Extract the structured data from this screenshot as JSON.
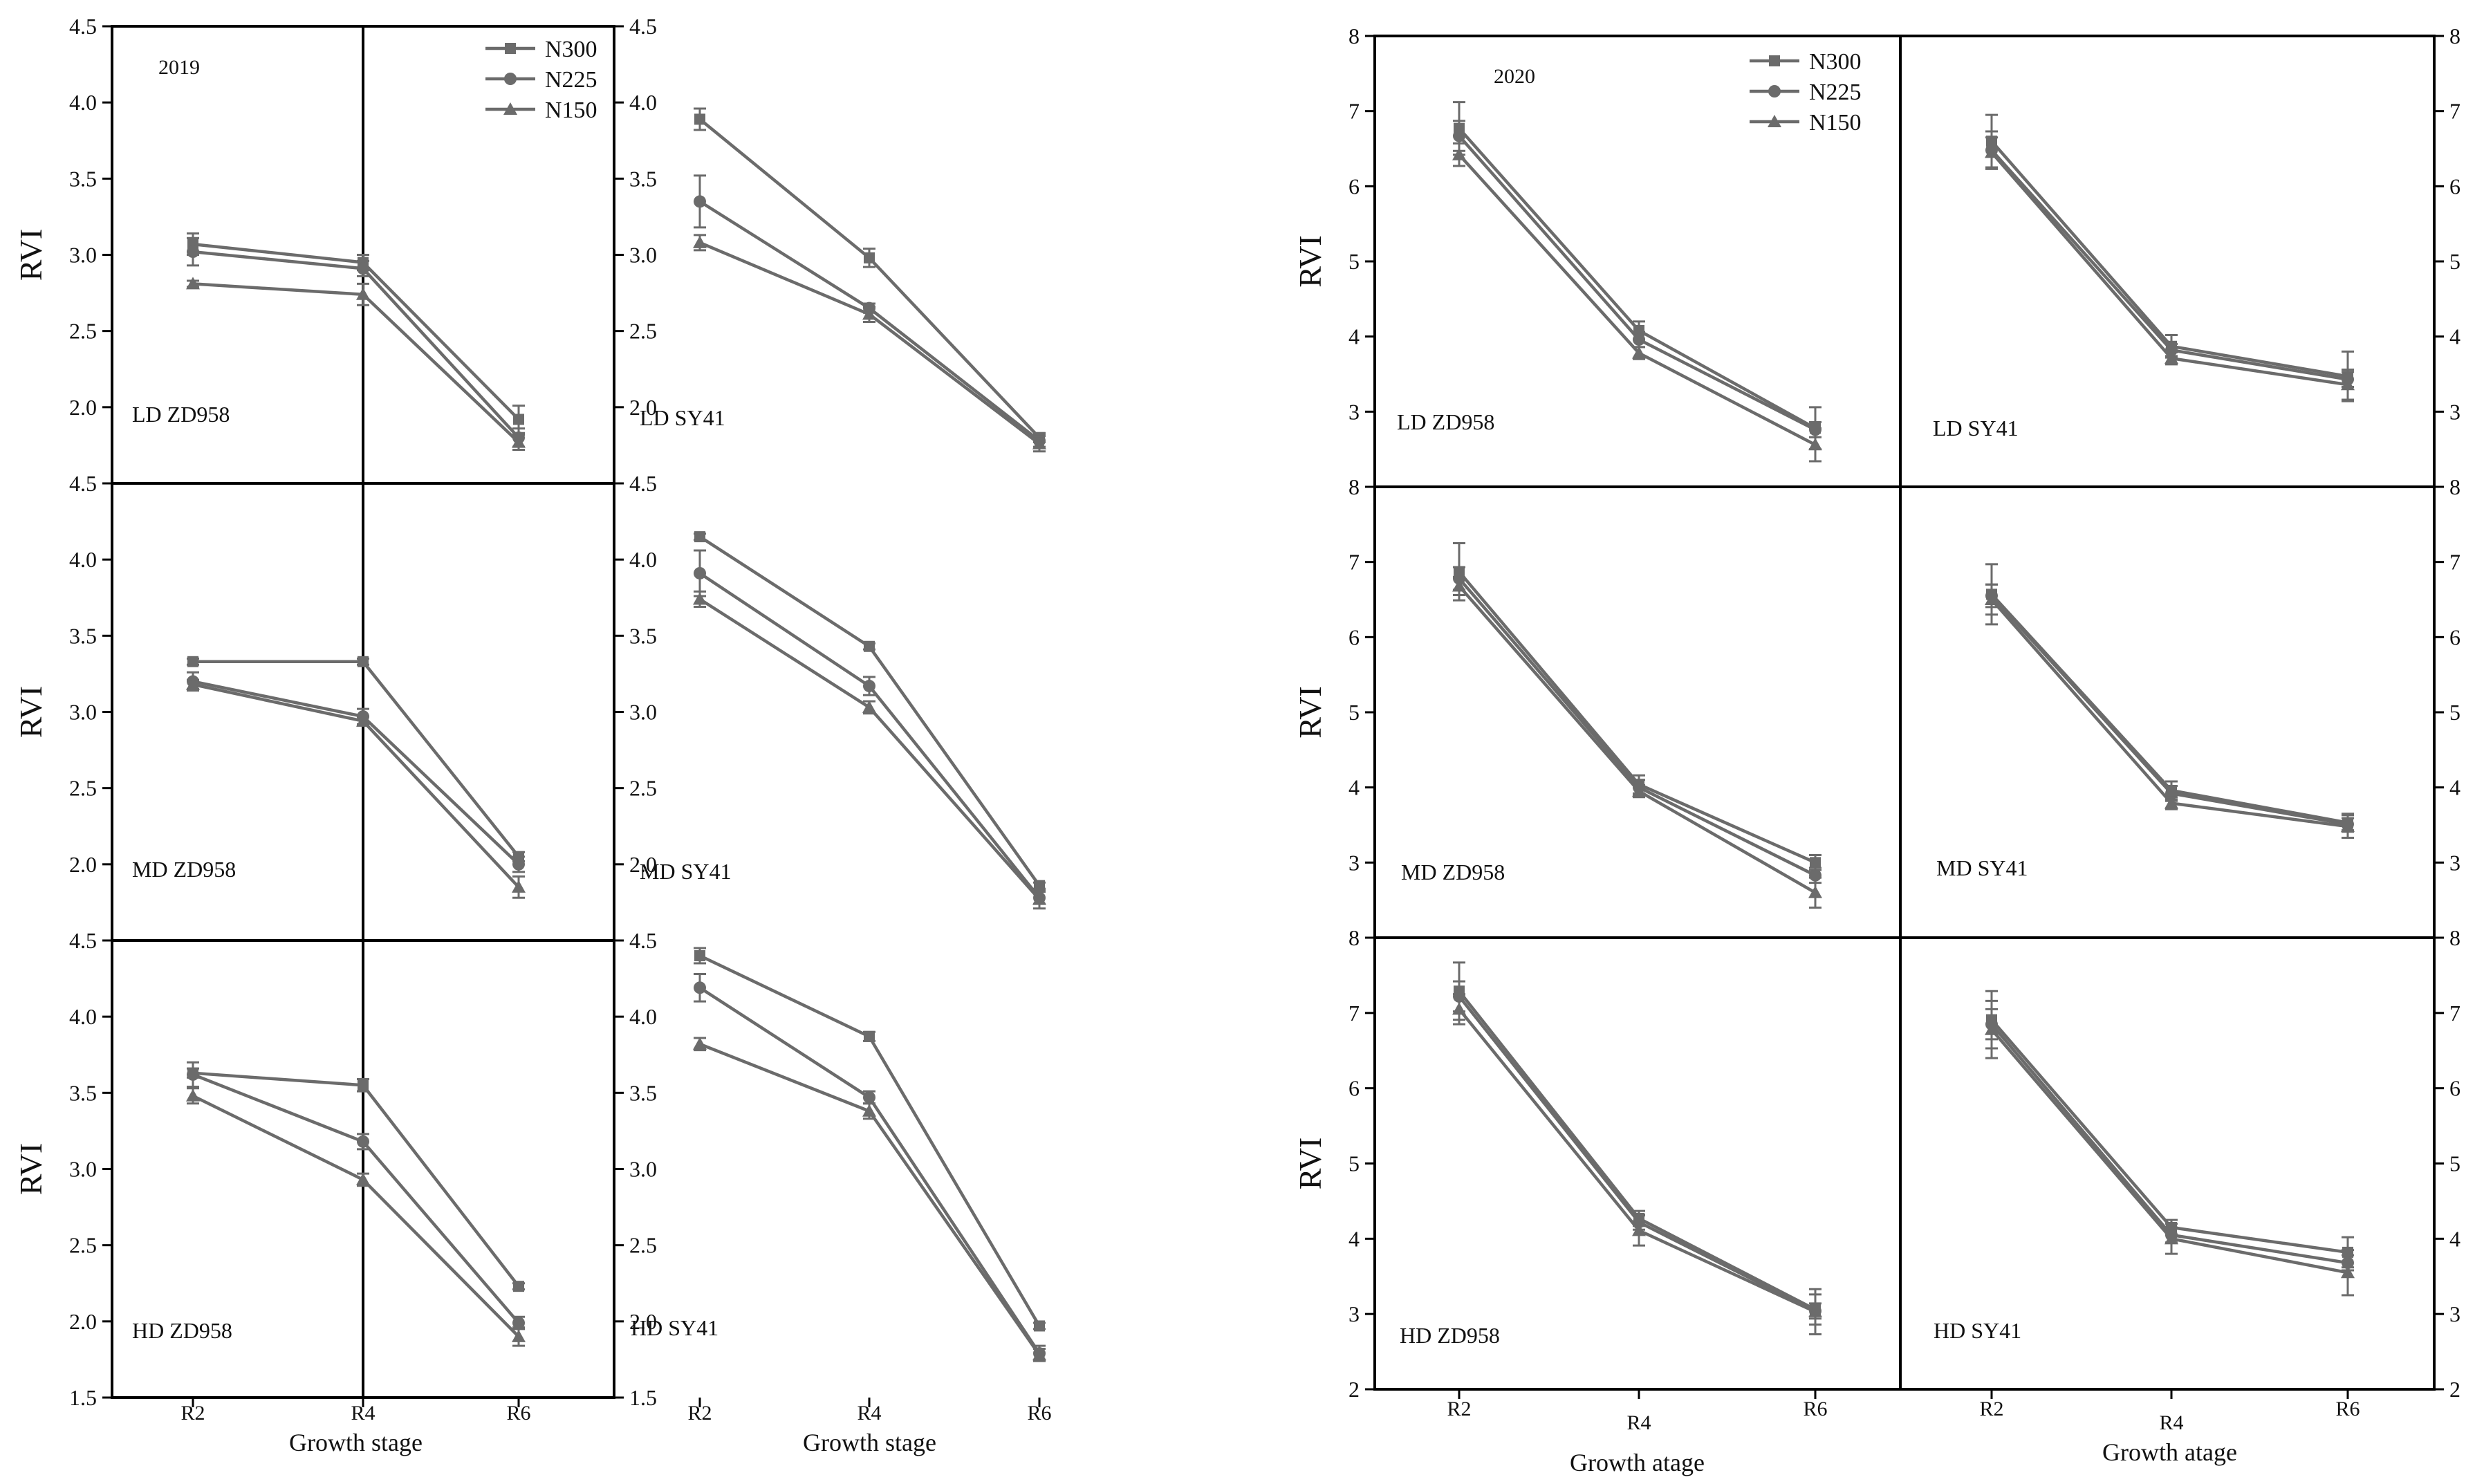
{
  "figure": {
    "legend_labels": [
      "N300",
      "N225",
      "N150"
    ],
    "series_color": "#6b6b6b",
    "marker_shapes": {
      "N300": "square",
      "N225": "circle",
      "N150": "triangle"
    }
  },
  "chart_data": [
    {
      "type": "line",
      "title": "2019",
      "ylabel": "RVI",
      "xlabel": "Growth stage",
      "categories": [
        "R2",
        "R4",
        "R6"
      ],
      "ylim": [
        1.5,
        4.5
      ],
      "yticks": [
        1.5,
        2.0,
        2.5,
        3.0,
        3.5,
        4.0,
        4.5
      ],
      "ytick_labels": [
        "1.5",
        "2.0",
        "2.5",
        "3.0",
        "3.5",
        "4.0",
        "4.5"
      ],
      "legend": [
        "N300",
        "N225",
        "N150"
      ],
      "panels": [
        {
          "label": "LD  ZD958",
          "series": [
            {
              "name": "N300",
              "values": [
                3.07,
                2.95,
                1.92
              ],
              "errors": [
                0.07,
                0.05,
                0.09
              ]
            },
            {
              "name": "N225",
              "values": [
                3.02,
                2.91,
                1.8
              ],
              "errors": [
                0.09,
                0.05,
                0.06
              ]
            },
            {
              "name": "N150",
              "values": [
                2.81,
                2.74,
                1.77
              ],
              "errors": [
                0.02,
                0.07,
                0.05
              ]
            }
          ]
        },
        {
          "label": "LD  SY41",
          "series": [
            {
              "name": "N300",
              "values": [
                3.89,
                2.98,
                1.8
              ],
              "errors": [
                0.07,
                0.06,
                0.03
              ]
            },
            {
              "name": "N225",
              "values": [
                3.35,
                2.65,
                1.78
              ],
              "errors": [
                0.17,
                0.03,
                0.04
              ]
            },
            {
              "name": "N150",
              "values": [
                3.08,
                2.61,
                1.76
              ],
              "errors": [
                0.05,
                0.05,
                0.05
              ]
            }
          ]
        },
        {
          "label": "MD  ZD958",
          "series": [
            {
              "name": "N300",
              "values": [
                3.33,
                3.33,
                2.05
              ],
              "errors": [
                0.02,
                0.02,
                0.03
              ]
            },
            {
              "name": "N225",
              "values": [
                3.2,
                2.97,
                2.0
              ],
              "errors": [
                0.06,
                0.05,
                0.05
              ]
            },
            {
              "name": "N150",
              "values": [
                3.18,
                2.94,
                1.85
              ],
              "errors": [
                0.03,
                0.03,
                0.07
              ]
            }
          ]
        },
        {
          "label": "MD  SY41",
          "series": [
            {
              "name": "N300",
              "values": [
                4.15,
                3.43,
                1.86
              ],
              "errors": [
                0.02,
                0.02,
                0.02
              ]
            },
            {
              "name": "N225",
              "values": [
                3.91,
                3.17,
                1.78
              ],
              "errors": [
                0.15,
                0.06,
                0.04
              ]
            },
            {
              "name": "N150",
              "values": [
                3.74,
                3.03,
                1.77
              ],
              "errors": [
                0.05,
                0.04,
                0.06
              ]
            }
          ]
        },
        {
          "label": "HD  ZD958",
          "series": [
            {
              "name": "N300",
              "values": [
                3.63,
                3.55,
                2.23
              ],
              "errors": [
                0.03,
                0.04,
                0.02
              ]
            },
            {
              "name": "N225",
              "values": [
                3.62,
                3.18,
                1.99
              ],
              "errors": [
                0.08,
                0.05,
                0.04
              ]
            },
            {
              "name": "N150",
              "values": [
                3.48,
                2.93,
                1.9
              ],
              "errors": [
                0.05,
                0.04,
                0.06
              ]
            }
          ]
        },
        {
          "label": "HD  SY41",
          "series": [
            {
              "name": "N300",
              "values": [
                4.4,
                3.87,
                1.97
              ],
              "errors": [
                0.05,
                0.03,
                0.02
              ]
            },
            {
              "name": "N225",
              "values": [
                4.19,
                3.47,
                1.79
              ],
              "errors": [
                0.09,
                0.04,
                0.05
              ]
            },
            {
              "name": "N150",
              "values": [
                3.82,
                3.38,
                1.78
              ],
              "errors": [
                0.04,
                0.05,
                0.04
              ]
            }
          ]
        }
      ]
    },
    {
      "type": "line",
      "title": "2020",
      "ylabel": "RVI",
      "xlabel": "Growth atage",
      "categories": [
        "R2",
        "R4",
        "R6"
      ],
      "ylim": [
        2,
        8
      ],
      "yticks": [
        2,
        3,
        4,
        5,
        6,
        7,
        8
      ],
      "ytick_labels": [
        "2",
        "3",
        "4",
        "5",
        "6",
        "7",
        "8"
      ],
      "legend": [
        "N300",
        "N225",
        "N150"
      ],
      "panels": [
        {
          "label": "LD  ZD958",
          "series": [
            {
              "name": "N300",
              "values": [
                6.77,
                4.08,
                2.78
              ],
              "errors": [
                0.35,
                0.12,
                0.28
              ]
            },
            {
              "name": "N225",
              "values": [
                6.67,
                3.96,
                2.76
              ],
              "errors": [
                0.2,
                0.1,
                0.1
              ]
            },
            {
              "name": "N150",
              "values": [
                6.42,
                3.78,
                2.56
              ],
              "errors": [
                0.15,
                0.08,
                0.22
              ]
            }
          ]
        },
        {
          "label": "LD  SY41",
          "series": [
            {
              "name": "N300",
              "values": [
                6.6,
                3.87,
                3.47
              ],
              "errors": [
                0.35,
                0.15,
                0.33
              ]
            },
            {
              "name": "N225",
              "values": [
                6.48,
                3.82,
                3.43
              ],
              "errors": [
                0.25,
                0.08,
                0.1
              ]
            },
            {
              "name": "N150",
              "values": [
                6.45,
                3.71,
                3.36
              ],
              "errors": [
                0.2,
                0.08,
                0.2
              ]
            }
          ]
        },
        {
          "label": "MD  ZD958",
          "series": [
            {
              "name": "N300",
              "values": [
                6.87,
                4.04,
                3.0
              ],
              "errors": [
                0.38,
                0.12,
                0.1
              ]
            },
            {
              "name": "N225",
              "values": [
                6.78,
                4.0,
                2.83
              ],
              "errors": [
                0.15,
                0.1,
                0.1
              ]
            },
            {
              "name": "N150",
              "values": [
                6.68,
                3.95,
                2.6
              ],
              "errors": [
                0.12,
                0.08,
                0.2
              ]
            }
          ]
        },
        {
          "label": "MD  SY41",
          "series": [
            {
              "name": "N300",
              "values": [
                6.57,
                3.96,
                3.53
              ],
              "errors": [
                0.4,
                0.12,
                0.12
              ]
            },
            {
              "name": "N225",
              "values": [
                6.55,
                3.92,
                3.51
              ],
              "errors": [
                0.15,
                0.1,
                0.08
              ]
            },
            {
              "name": "N150",
              "values": [
                6.5,
                3.79,
                3.48
              ],
              "errors": [
                0.2,
                0.08,
                0.15
              ]
            }
          ]
        },
        {
          "label": "HD  ZD958",
          "series": [
            {
              "name": "N300",
              "values": [
                7.29,
                4.27,
                3.06
              ],
              "errors": [
                0.38,
                0.1,
                0.2
              ]
            },
            {
              "name": "N225",
              "values": [
                7.22,
                4.22,
                3.04
              ],
              "errors": [
                0.2,
                0.1,
                0.1
              ]
            },
            {
              "name": "N150",
              "values": [
                7.05,
                4.11,
                3.03
              ],
              "errors": [
                0.2,
                0.2,
                0.3
              ]
            }
          ]
        },
        {
          "label": "HD  SY41",
          "series": [
            {
              "name": "N300",
              "values": [
                6.91,
                4.15,
                3.82
              ],
              "errors": [
                0.38,
                0.1,
                0.2
              ]
            },
            {
              "name": "N225",
              "values": [
                6.85,
                4.05,
                3.68
              ],
              "errors": [
                0.2,
                0.1,
                0.1
              ]
            },
            {
              "name": "N150",
              "values": [
                6.78,
                4.0,
                3.55
              ],
              "errors": [
                0.38,
                0.2,
                0.3
              ]
            }
          ]
        }
      ]
    }
  ]
}
